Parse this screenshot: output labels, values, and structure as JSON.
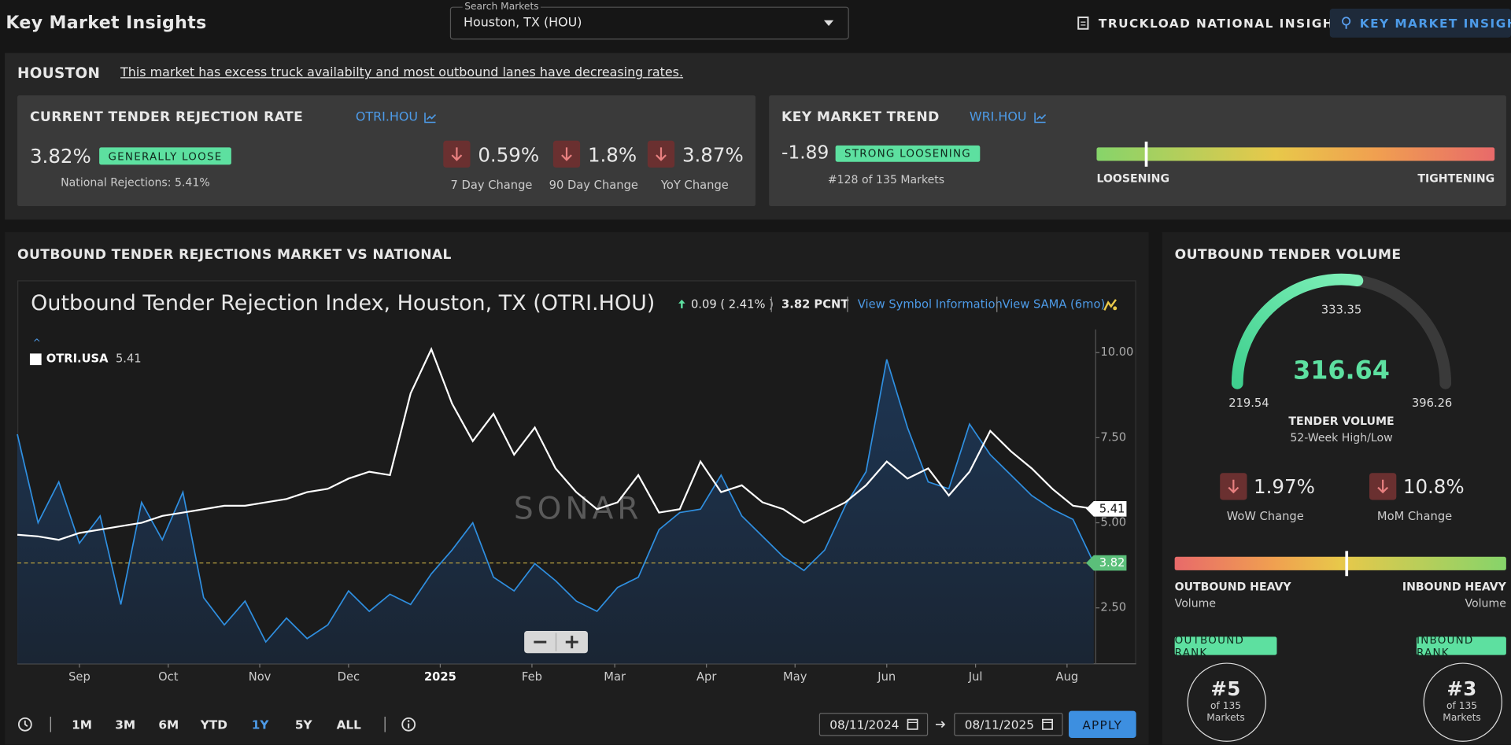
{
  "header": {
    "title": "Key Market Insights",
    "search_label": "Search Markets",
    "search_value": "Houston, TX (HOU)",
    "nav": [
      "TRUCKLOAD NATIONAL INSIGHTS",
      "KEY MARKET INSIGHTS"
    ]
  },
  "summary": {
    "market": "HOUSTON",
    "description": "This market has excess truck availabilty and most outbound lanes have decreasing rates."
  },
  "rejection": {
    "title": "CURRENT TENDER REJECTION RATE",
    "symbol": "OTRI.HOU",
    "value": "3.82%",
    "badge": "GENERALLY LOOSE",
    "national": "National Rejections: 5.41%",
    "changes": [
      {
        "value": "0.59%",
        "label": "7 Day Change"
      },
      {
        "value": "1.8%",
        "label": "90 Day Change"
      },
      {
        "value": "3.87%",
        "label": "YoY Change"
      }
    ]
  },
  "trend": {
    "title": "KEY MARKET TREND",
    "symbol": "WRI.HOU",
    "value": "-1.89",
    "badge": "STRONG LOOSENING",
    "rank": "#128 of 135 Markets",
    "left": "LOOSENING",
    "right": "TIGHTENING"
  },
  "rejections_panel": {
    "title": "OUTBOUND TENDER REJECTIONS MARKET VS NATIONAL",
    "chart_title": "Outbound Tender Rejection Index, Houston, TX (OTRI.HOU)",
    "change": "0.09 ( 2.41% )",
    "last": "3.82 PCNT",
    "links": [
      "View Symbol Information",
      "View SAMA (6mo)"
    ],
    "watermark": "SONAR",
    "ranges": [
      "1M",
      "3M",
      "6M",
      "YTD",
      "1Y",
      "5Y",
      "ALL"
    ],
    "active_range": 4,
    "date_from": "08/11/2024",
    "date_to": "08/11/2025",
    "apply": "APPLY"
  },
  "chart_data": {
    "type": "line",
    "x": [
      0,
      1,
      2,
      3,
      4,
      5,
      6,
      7,
      8,
      9,
      10,
      11,
      12,
      13,
      14,
      15,
      16,
      17,
      18,
      19,
      20,
      21,
      22,
      23,
      24,
      25,
      26,
      27,
      28,
      29,
      30,
      31,
      32,
      33,
      34,
      35,
      36,
      37,
      38,
      39,
      40,
      41,
      42,
      43,
      44,
      45,
      46,
      47,
      48,
      49,
      50,
      51,
      52
    ],
    "xlim": [
      0,
      52
    ],
    "xticks": [
      {
        "value": 3.0,
        "label": "Sep"
      },
      {
        "value": 7.29,
        "label": "Oct"
      },
      {
        "value": 11.71,
        "label": "Nov"
      },
      {
        "value": 16.0,
        "label": "Dec"
      },
      {
        "value": 20.43,
        "label": "2025"
      },
      {
        "value": 24.86,
        "label": "Feb"
      },
      {
        "value": 28.86,
        "label": "Mar"
      },
      {
        "value": 33.29,
        "label": "Apr"
      },
      {
        "value": 37.57,
        "label": "May"
      },
      {
        "value": 42.0,
        "label": "Jun"
      },
      {
        "value": 46.29,
        "label": "Jul"
      },
      {
        "value": 50.71,
        "label": "Aug"
      }
    ],
    "ylim": [
      0.86,
      10.68
    ],
    "yticks": [
      {
        "value": 2.5,
        "label": "2.50"
      },
      {
        "value": 5.0,
        "label": "5.00"
      },
      {
        "value": 7.5,
        "label": "7.50"
      },
      {
        "value": 10.0,
        "label": "10.00"
      }
    ],
    "series": [
      {
        "name": "OTRI.USA",
        "color": "#ffffff",
        "last_label": "5.41",
        "values": [
          4.65,
          4.6,
          4.5,
          4.7,
          4.8,
          4.9,
          5.0,
          5.2,
          5.3,
          5.4,
          5.5,
          5.5,
          5.6,
          5.7,
          5.9,
          6.0,
          6.3,
          6.5,
          6.4,
          8.8,
          10.1,
          8.5,
          7.4,
          8.2,
          7.0,
          7.8,
          6.6,
          5.9,
          5.4,
          5.6,
          6.4,
          5.3,
          5.4,
          6.8,
          5.9,
          6.1,
          5.6,
          5.4,
          5.0,
          5.3,
          5.6,
          6.1,
          6.8,
          6.3,
          6.6,
          5.8,
          6.5,
          7.7,
          7.1,
          6.6,
          6.0,
          5.5,
          5.41
        ]
      },
      {
        "color": "#2f8fe0",
        "last_label": "3.82",
        "values": [
          7.6,
          5.0,
          6.2,
          4.4,
          5.2,
          2.6,
          5.6,
          4.5,
          5.9,
          2.8,
          2.0,
          2.7,
          1.5,
          2.2,
          1.6,
          2.0,
          3.0,
          2.4,
          2.9,
          2.6,
          3.5,
          4.2,
          5.0,
          3.4,
          3.0,
          3.8,
          3.3,
          2.7,
          2.4,
          3.1,
          3.4,
          4.8,
          5.3,
          5.4,
          6.4,
          5.2,
          4.6,
          4.0,
          3.6,
          4.2,
          5.5,
          6.5,
          9.8,
          7.8,
          6.2,
          6.0,
          7.9,
          7.0,
          6.4,
          5.8,
          5.4,
          5.1,
          3.82
        ]
      }
    ]
  },
  "volume": {
    "title": "OUTBOUND TENDER VOLUME",
    "value": 316.64,
    "average": 333.35,
    "min": 219.54,
    "max": 396.26,
    "label": "TENDER VOLUME",
    "sublabel": "52-Week High/Low",
    "changes": [
      {
        "value": "1.97%",
        "label": "WoW Change"
      },
      {
        "value": "10.8%",
        "label": "MoM Change"
      }
    ],
    "left": "OUTBOUND HEAVY",
    "left_sub": "Volume",
    "right": "INBOUND HEAVY",
    "right_sub": "Volume",
    "ranks": [
      {
        "title": "OUTBOUND RANK",
        "rank": "#5",
        "of": "of 135 Markets"
      },
      {
        "title": "INBOUND RANK",
        "rank": "#3",
        "of": "of 135 Markets"
      }
    ]
  }
}
